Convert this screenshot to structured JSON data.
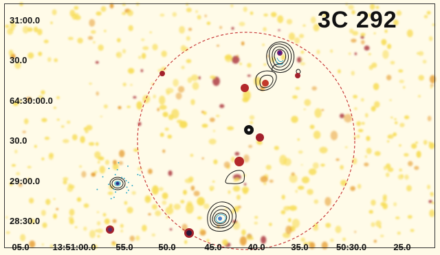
{
  "title": "3C 292",
  "ra_ticks": [
    {
      "label": "05.0"
    },
    {
      "label": "13:51:00.0"
    },
    {
      "label": "55.0"
    },
    {
      "label": "50.0"
    },
    {
      "label": "45.0"
    },
    {
      "label": "40.0"
    },
    {
      "label": "35.0"
    },
    {
      "label": "50:30.0"
    },
    {
      "label": "25.0"
    }
  ],
  "dec_ticks": [
    {
      "label": "31:00.0"
    },
    {
      "label": "30.0"
    },
    {
      "label": "64:30:00.0"
    },
    {
      "label": "30.0"
    },
    {
      "label": "29:00.0"
    },
    {
      "label": "28:30.0"
    }
  ],
  "colors": {
    "background": "#fffbe8",
    "noise_low": "#f7dc56",
    "noise_mid": "#e8a23a",
    "noise_high": "#a3212c",
    "contour": "#111111",
    "inner_contour": "#2fa9c8",
    "circle": "#c83a3a"
  }
}
